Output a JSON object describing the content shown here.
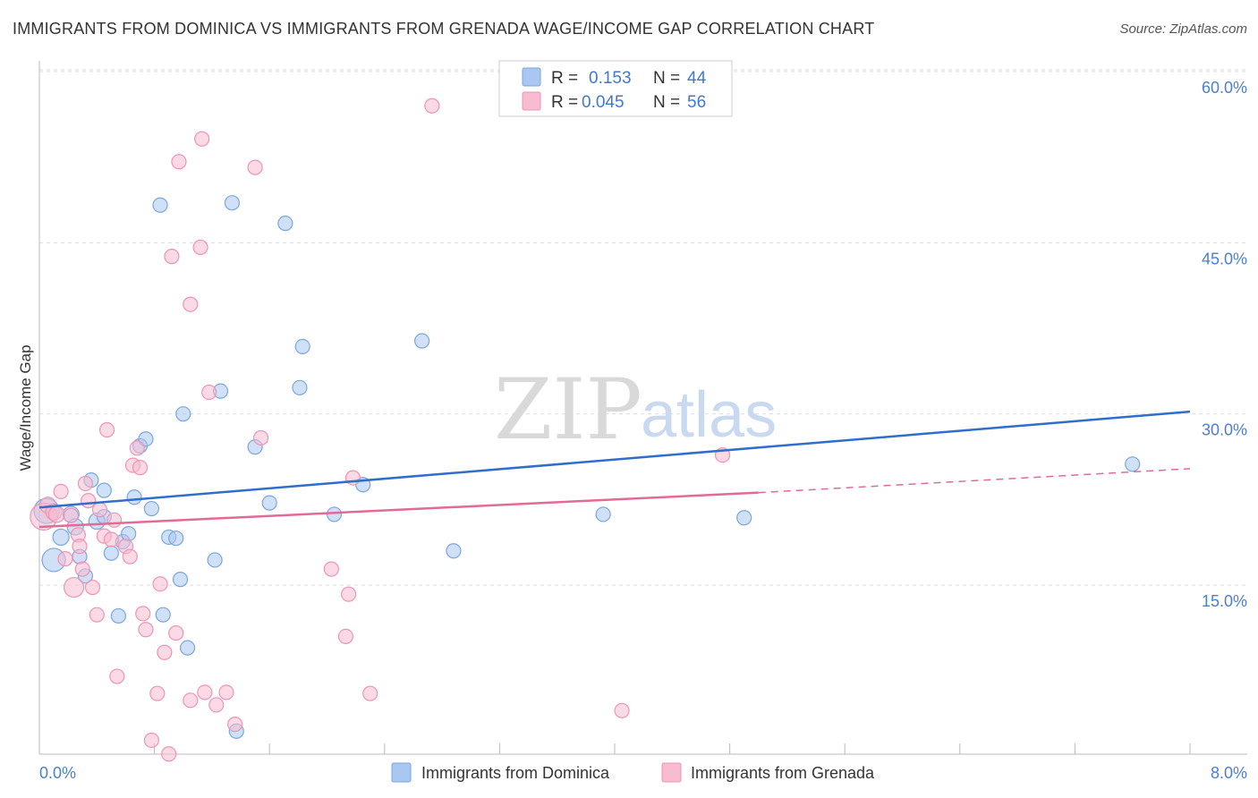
{
  "header": {
    "title": "IMMIGRANTS FROM DOMINICA VS IMMIGRANTS FROM GRENADA WAGE/INCOME GAP CORRELATION CHART",
    "source": "Source: ZipAtlas.com"
  },
  "watermark": {
    "zip": "ZIP",
    "atlas": "atlas"
  },
  "legend": {
    "r_label": "R =",
    "n_label": "N =",
    "items": [
      {
        "r": "0.153",
        "n": "44"
      },
      {
        "r": "0.045",
        "n": "56"
      }
    ]
  },
  "colors": {
    "dominica_fill": "#a9c7f0",
    "dominica_stroke": "#7aa6e0",
    "dominica_line": "#2f6fc9",
    "grenada_fill": "#f7bcd0",
    "grenada_stroke": "#ee94b3",
    "grenada_line": "#e06b96",
    "axis_text": "#4a7fd1",
    "grid": "#dddddd"
  },
  "chart_data": {
    "type": "scatter",
    "title": "IMMIGRANTS FROM DOMINICA VS IMMIGRANTS FROM GRENADA WAGE/INCOME GAP CORRELATION CHART",
    "xlabel": "",
    "ylabel": "Wage/Income Gap",
    "xlim": [
      0,
      8
    ],
    "ylim": [
      0,
      63
    ],
    "x_tick_labels": [
      "0.0%",
      "8.0%"
    ],
    "y_ticks": [
      15,
      30,
      45,
      60
    ],
    "y_tick_labels": [
      "15.0%",
      "30.0%",
      "45.0%",
      "60.0%"
    ],
    "grid": "horizontal dashed",
    "legend_position": "top-center",
    "series": [
      {
        "name": "Immigrants from Dominica",
        "r": 0.153,
        "n": 44,
        "trend": {
          "x": [
            0,
            8
          ],
          "y": [
            21.8,
            30.2
          ],
          "dashed_from": null
        },
        "points": [
          [
            0.05,
            21.5,
            14
          ],
          [
            0.1,
            17.2,
            13
          ],
          [
            0.15,
            19.2,
            9
          ],
          [
            0.22,
            21.2,
            9
          ],
          [
            0.25,
            20.1,
            9
          ],
          [
            0.28,
            17.5,
            8
          ],
          [
            0.32,
            15.8,
            8
          ],
          [
            0.36,
            24.2,
            8
          ],
          [
            0.4,
            20.6,
            9
          ],
          [
            0.45,
            23.3,
            8
          ],
          [
            0.45,
            21.0,
            8
          ],
          [
            0.5,
            17.8,
            8
          ],
          [
            0.55,
            12.3,
            8
          ],
          [
            0.58,
            18.8,
            8
          ],
          [
            0.62,
            19.5,
            8
          ],
          [
            0.66,
            22.7,
            8
          ],
          [
            0.7,
            27.2,
            8
          ],
          [
            0.74,
            27.8,
            8
          ],
          [
            0.78,
            21.7,
            8
          ],
          [
            0.84,
            48.3,
            8
          ],
          [
            0.86,
            12.4,
            8
          ],
          [
            0.9,
            19.2,
            8
          ],
          [
            0.95,
            19.1,
            8
          ],
          [
            0.98,
            15.5,
            8
          ],
          [
            1.0,
            30.0,
            8
          ],
          [
            1.03,
            9.5,
            8
          ],
          [
            1.22,
            17.2,
            8
          ],
          [
            1.26,
            32.0,
            8
          ],
          [
            1.34,
            48.5,
            8
          ],
          [
            1.37,
            2.2,
            8
          ],
          [
            1.5,
            27.1,
            8
          ],
          [
            1.6,
            22.2,
            8
          ],
          [
            1.71,
            46.7,
            8
          ],
          [
            1.81,
            32.3,
            8
          ],
          [
            1.83,
            35.9,
            8
          ],
          [
            2.05,
            21.2,
            8
          ],
          [
            2.25,
            23.8,
            8
          ],
          [
            2.66,
            36.4,
            8
          ],
          [
            2.88,
            18.0,
            8
          ],
          [
            3.92,
            21.2,
            8
          ],
          [
            4.9,
            20.9,
            8
          ],
          [
            7.6,
            25.6,
            8
          ]
        ]
      },
      {
        "name": "Immigrants from Grenada",
        "r": 0.045,
        "n": 56,
        "trend": {
          "x": [
            0,
            5.0
          ],
          "y": [
            20.1,
            23.1
          ],
          "dashed_from": 5.0,
          "dashed_to": [
            8,
            25.2
          ]
        },
        "points": [
          [
            0.03,
            21.0,
            15
          ],
          [
            0.06,
            22.0,
            9
          ],
          [
            0.1,
            21.4,
            9
          ],
          [
            0.12,
            21.2,
            9
          ],
          [
            0.15,
            23.2,
            8
          ],
          [
            0.18,
            17.3,
            8
          ],
          [
            0.22,
            21.1,
            8
          ],
          [
            0.24,
            14.8,
            11
          ],
          [
            0.27,
            19.4,
            8
          ],
          [
            0.28,
            18.4,
            8
          ],
          [
            0.3,
            16.4,
            8
          ],
          [
            0.32,
            23.9,
            8
          ],
          [
            0.34,
            22.4,
            8
          ],
          [
            0.37,
            14.8,
            8
          ],
          [
            0.4,
            12.4,
            8
          ],
          [
            0.42,
            21.6,
            8
          ],
          [
            0.45,
            19.3,
            8
          ],
          [
            0.47,
            28.6,
            8
          ],
          [
            0.5,
            19.0,
            8
          ],
          [
            0.52,
            20.7,
            8
          ],
          [
            0.54,
            7.0,
            8
          ],
          [
            0.6,
            18.4,
            8
          ],
          [
            0.63,
            17.5,
            8
          ],
          [
            0.65,
            25.5,
            8
          ],
          [
            0.68,
            27.0,
            8
          ],
          [
            0.7,
            25.3,
            8
          ],
          [
            0.72,
            12.5,
            8
          ],
          [
            0.74,
            11.1,
            8
          ],
          [
            0.78,
            1.4,
            8
          ],
          [
            0.82,
            5.5,
            8
          ],
          [
            0.84,
            15.1,
            8
          ],
          [
            0.87,
            9.1,
            8
          ],
          [
            0.9,
            0.2,
            8
          ],
          [
            0.92,
            43.8,
            8
          ],
          [
            0.95,
            10.8,
            8
          ],
          [
            0.97,
            52.1,
            8
          ],
          [
            1.05,
            4.9,
            8
          ],
          [
            1.05,
            39.6,
            8
          ],
          [
            1.12,
            44.6,
            8
          ],
          [
            1.13,
            54.1,
            8
          ],
          [
            1.15,
            5.6,
            8
          ],
          [
            1.18,
            31.9,
            8
          ],
          [
            1.23,
            4.5,
            8
          ],
          [
            1.3,
            5.6,
            8
          ],
          [
            1.36,
            2.8,
            8
          ],
          [
            1.5,
            51.6,
            8
          ],
          [
            1.54,
            27.9,
            8
          ],
          [
            2.03,
            16.4,
            8
          ],
          [
            2.13,
            10.5,
            8
          ],
          [
            2.15,
            14.2,
            8
          ],
          [
            2.18,
            24.4,
            8
          ],
          [
            2.3,
            5.5,
            8
          ],
          [
            2.73,
            57.0,
            8
          ],
          [
            4.05,
            4.0,
            8
          ],
          [
            4.75,
            26.4,
            8
          ]
        ]
      }
    ]
  },
  "bottom_legend": [
    {
      "label": "Immigrants from Dominica"
    },
    {
      "label": "Immigrants from Grenada"
    }
  ]
}
